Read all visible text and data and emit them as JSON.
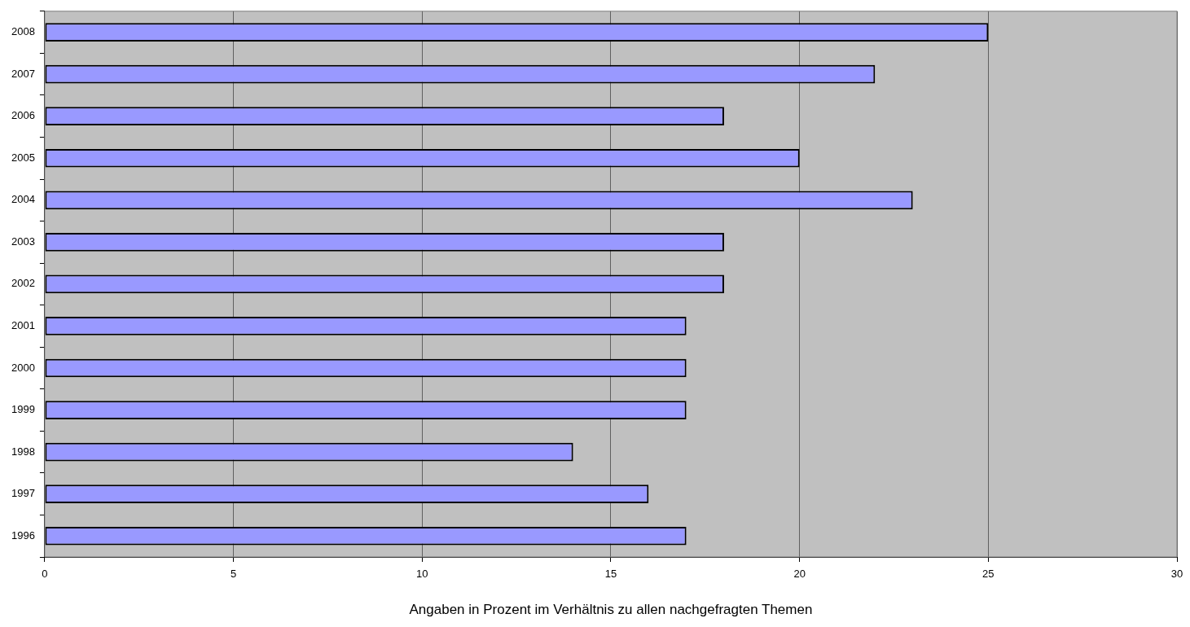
{
  "chart_data": {
    "type": "bar",
    "orientation": "horizontal",
    "categories": [
      "2008",
      "2007",
      "2006",
      "2005",
      "2004",
      "2003",
      "2002",
      "2001",
      "2000",
      "1999",
      "1998",
      "1997",
      "1996"
    ],
    "values": [
      25,
      22,
      18,
      20,
      23,
      18,
      18,
      17,
      17,
      17,
      14,
      16,
      17
    ],
    "color": "#9999ff",
    "xlabel": "Angaben in Prozent im Verhältnis zu allen nachgefragten Themen",
    "xlim": [
      0,
      30
    ],
    "xticks": [
      0,
      5,
      10,
      15,
      20,
      25,
      30
    ],
    "grid": "x",
    "legend": false
  }
}
